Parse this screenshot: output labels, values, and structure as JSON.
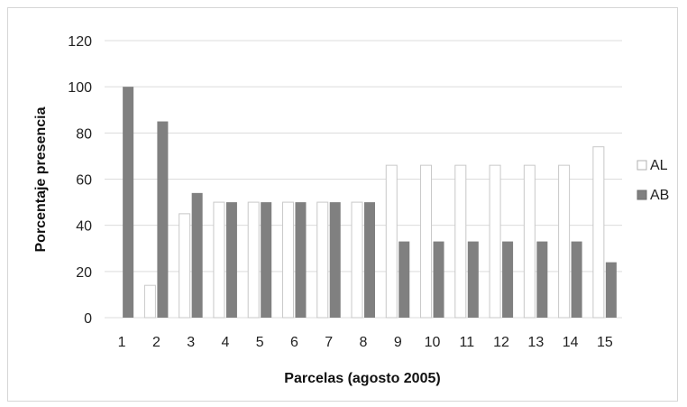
{
  "chart_data": {
    "type": "bar",
    "categories": [
      "1",
      "2",
      "3",
      "4",
      "5",
      "6",
      "7",
      "8",
      "9",
      "10",
      "11",
      "12",
      "13",
      "14",
      "15"
    ],
    "series": [
      {
        "name": "AL",
        "values": [
          0,
          14,
          45,
          50,
          50,
          50,
          50,
          50,
          66,
          66,
          66,
          66,
          66,
          66,
          74
        ]
      },
      {
        "name": "AB",
        "values": [
          100,
          85,
          54,
          50,
          50,
          50,
          50,
          50,
          33,
          33,
          33,
          33,
          33,
          33,
          24
        ]
      }
    ],
    "xlabel": "Parcelas (agosto 2005)",
    "ylabel": "Porcentaje presencia",
    "ylim": [
      0,
      120
    ],
    "yticks": [
      0,
      20,
      40,
      60,
      80,
      100,
      120
    ],
    "grid": true,
    "legend_position": "right",
    "colors": {
      "AL": "#ffffff",
      "AB": "#808080",
      "grid": "#dcdcdc",
      "outline": "#c8c8c8"
    }
  }
}
